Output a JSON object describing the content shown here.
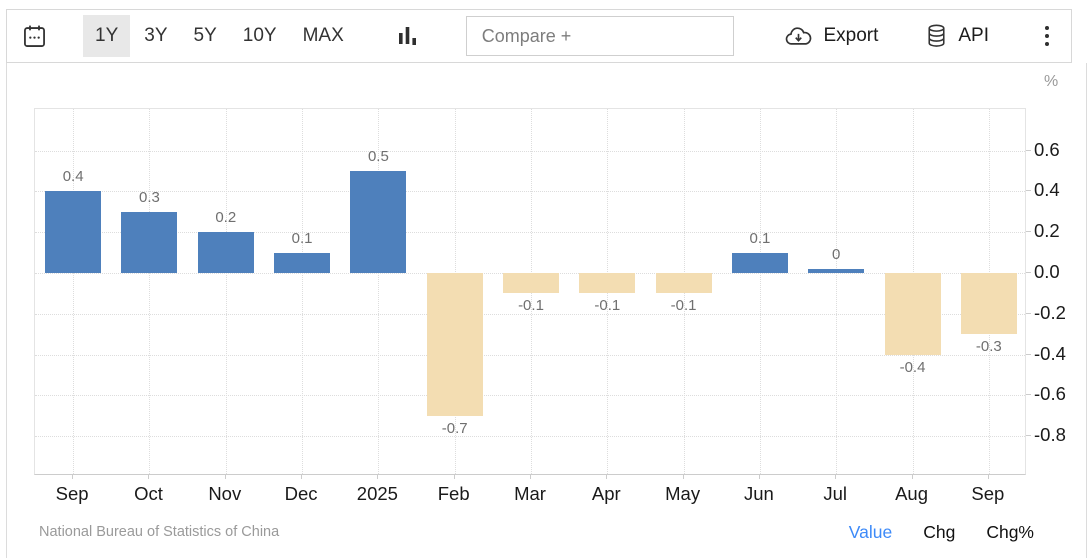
{
  "toolbar": {
    "tabs": [
      {
        "label": "1Y",
        "active": true
      },
      {
        "label": "3Y",
        "active": false
      },
      {
        "label": "5Y",
        "active": false
      },
      {
        "label": "10Y",
        "active": false
      },
      {
        "label": "MAX",
        "active": false
      }
    ],
    "compare_placeholder": "Compare +",
    "export_label": "Export",
    "api_label": "API"
  },
  "chart_data": {
    "type": "bar",
    "categories": [
      "Sep",
      "Oct",
      "Nov",
      "Dec",
      "2025",
      "Feb",
      "Mar",
      "Apr",
      "May",
      "Jun",
      "Jul",
      "Aug",
      "Sep"
    ],
    "values": [
      0.4,
      0.3,
      0.2,
      0.1,
      0.5,
      -0.7,
      -0.1,
      -0.1,
      -0.1,
      0.1,
      0,
      -0.4,
      -0.3
    ],
    "value_labels": [
      "0.4",
      "0.3",
      "0.2",
      "0.1",
      "0.5",
      "-0.7",
      "-0.1",
      "-0.1",
      "-0.1",
      "0.1",
      "0",
      "-0.4",
      "-0.3"
    ],
    "title": "",
    "xlabel": "",
    "ylabel": "%",
    "ylim": [
      -1.0,
      0.8
    ],
    "yticks": [
      0.6,
      0.4,
      0.2,
      0,
      -0.2,
      -0.4,
      -0.6,
      -0.8
    ],
    "ytick_labels": [
      "0.6",
      "0.4",
      "0.2",
      "0.0",
      "-0.2",
      "-0.4",
      "-0.6",
      "-0.8"
    ],
    "grid": true,
    "legend_position": "none",
    "positive_color": "#4e80bc",
    "negative_color": "#f3ddb2"
  },
  "footer": {
    "source": "National Bureau of Statistics of China",
    "links": [
      {
        "label": "Value",
        "active": true
      },
      {
        "label": "Chg",
        "active": false
      },
      {
        "label": "Chg%",
        "active": false
      }
    ]
  }
}
